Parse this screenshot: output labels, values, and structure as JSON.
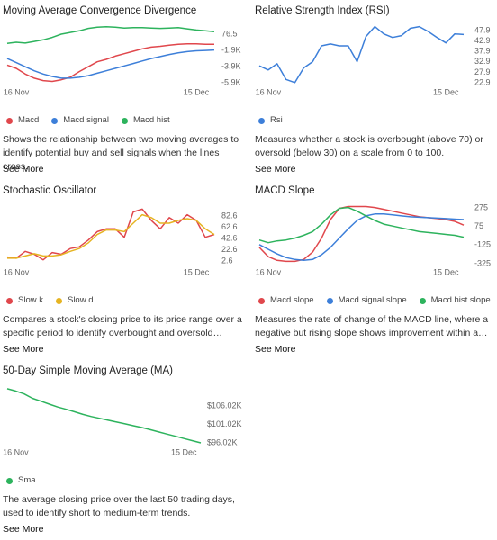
{
  "chart_data": [
    {
      "type": "line",
      "title": "Moving Average Convergence Divergence",
      "categories": [
        null,
        "16 Nov",
        null,
        null,
        null,
        null,
        null,
        null,
        null,
        null,
        null,
        null,
        null,
        null,
        null,
        null,
        null,
        null,
        null,
        null,
        null,
        "15 Dec",
        null,
        null
      ],
      "series": [
        {
          "name": "Macd",
          "color": "#e0474c",
          "values": [
            -3700,
            -4100,
            -4800,
            -5300,
            -5600,
            -5700,
            -5500,
            -5200,
            -4500,
            -3900,
            -3300,
            -3000,
            -2600,
            -2300,
            -2000,
            -1700,
            -1500,
            -1400,
            -1250,
            -1150,
            -1100,
            -1100,
            -1150,
            -1150
          ]
        },
        {
          "name": "Macd signal",
          "color": "#3d7fd9",
          "values": [
            -2900,
            -3400,
            -3900,
            -4400,
            -4800,
            -5100,
            -5300,
            -5300,
            -5200,
            -5000,
            -4700,
            -4400,
            -4100,
            -3800,
            -3500,
            -3200,
            -2900,
            -2650,
            -2400,
            -2200,
            -2050,
            -1950,
            -1900,
            -1850
          ]
        },
        {
          "name": "Macd hist",
          "color": "#2db35d",
          "values": [
            -1030,
            -900,
            -1000,
            -800,
            -600,
            -300,
            100,
            300,
            500,
            800,
            950,
            1000,
            950,
            850,
            900,
            900,
            850,
            800,
            850,
            900,
            750,
            600,
            500,
            400
          ]
        }
      ],
      "ylim": [
        -6200,
        1200
      ],
      "yticks": [
        76.5,
        {
          "value": -1900,
          "label": "-1.9K"
        },
        {
          "value": -3900,
          "label": "-3.9K"
        },
        {
          "value": -5900,
          "label": "-5.9K"
        }
      ],
      "description": "Shows the relationship between two moving averages to identify potential buy and sell signals when the lines cross.",
      "link": "See More"
    },
    {
      "type": "line",
      "title": "Relative Strength Index (RSI)",
      "categories": [
        null,
        "16 Nov",
        null,
        null,
        null,
        null,
        null,
        null,
        null,
        null,
        null,
        null,
        null,
        null,
        null,
        null,
        null,
        null,
        null,
        null,
        null,
        "15 Dec",
        null,
        null
      ],
      "series": [
        {
          "name": "Rsi",
          "color": "#3d7fd9",
          "values": [
            31,
            29,
            32,
            24.5,
            23,
            30,
            33,
            40.6,
            41.5,
            40.6,
            40.6,
            33,
            45,
            49.8,
            46.3,
            44.6,
            45.5,
            49,
            49.8,
            47.5,
            44.6,
            42,
            46.3,
            46
          ]
        }
      ],
      "ylim": [
        21.6,
        50.5
      ],
      "yticks": [
        47.9,
        42.9,
        37.9,
        32.9,
        27.9,
        22.9
      ],
      "description": "Measures whether a stock is overbought (above 70) or oversold (below 30) on a scale from 0 to 100.",
      "link": "See More"
    },
    {
      "type": "line",
      "title": "Stochastic Oscillator",
      "categories": [
        null,
        "16 Nov",
        null,
        null,
        null,
        null,
        null,
        null,
        null,
        null,
        null,
        null,
        null,
        null,
        null,
        null,
        null,
        null,
        null,
        null,
        null,
        "15 Dec",
        null,
        null
      ],
      "series": [
        {
          "name": "Slow k",
          "color": "#e0474c",
          "values": [
            10,
            8,
            20,
            15,
            5,
            18,
            15,
            25,
            28,
            40,
            55,
            60,
            60,
            45,
            90,
            95,
            75,
            60,
            80,
            70,
            85,
            75,
            45,
            50
          ]
        },
        {
          "name": "Slow d",
          "color": "#e6b422",
          "values": [
            8,
            8,
            12,
            16,
            12,
            12,
            14,
            20,
            25,
            35,
            50,
            58,
            58,
            55,
            70,
            85,
            80,
            70,
            70,
            75,
            78,
            75,
            60,
            50
          ]
        }
      ],
      "ylim": [
        -5,
        102
      ],
      "yticks": [
        82.6,
        62.6,
        42.6,
        22.6,
        2.6
      ],
      "description": "Compares a stock's closing price to its price range over a specific period to identify overbought and oversold…",
      "link": "See More"
    },
    {
      "type": "line",
      "title": "MACD Slope",
      "categories": [
        null,
        "16 Nov",
        null,
        null,
        null,
        null,
        null,
        null,
        null,
        null,
        null,
        null,
        null,
        null,
        null,
        null,
        null,
        null,
        null,
        null,
        null,
        "15 Dec",
        null,
        null
      ],
      "series": [
        {
          "name": "Macd slope",
          "color": "#e0474c",
          "values": [
            -150,
            -250,
            -290,
            -300,
            -300,
            -280,
            -200,
            -50,
            150,
            270,
            290,
            290,
            290,
            280,
            260,
            240,
            220,
            200,
            180,
            170,
            160,
            150,
            130,
            90
          ]
        },
        {
          "name": "Macd signal slope",
          "color": "#3d7fd9",
          "values": [
            -120,
            -170,
            -220,
            -260,
            -280,
            -290,
            -280,
            -230,
            -150,
            -50,
            50,
            140,
            190,
            210,
            210,
            200,
            190,
            180,
            175,
            170,
            165,
            160,
            155,
            150
          ]
        },
        {
          "name": "Macd hist slope",
          "color": "#2db35d",
          "values": [
            -70,
            -100,
            -80,
            -70,
            -50,
            -20,
            20,
            100,
            200,
            270,
            280,
            240,
            190,
            140,
            100,
            80,
            60,
            40,
            20,
            10,
            0,
            -10,
            -20,
            -40
          ]
        }
      ],
      "ylim": [
        -345,
        305
      ],
      "yticks": [
        275,
        75,
        -125,
        -325
      ],
      "description": "Measures the rate of change of the MACD line, where a negative but rising slope shows improvement within a…",
      "link": "See More"
    },
    {
      "type": "line",
      "title": "50-Day Simple Moving Average (MA)",
      "categories": [
        null,
        "16 Nov",
        null,
        null,
        null,
        null,
        null,
        null,
        null,
        null,
        null,
        null,
        null,
        null,
        null,
        null,
        null,
        null,
        null,
        null,
        null,
        "15 Dec",
        null,
        null
      ],
      "series": [
        {
          "name": "Sma",
          "color": "#2db35d",
          "values": [
            110800,
            110200,
            109400,
            108200,
            107400,
            106600,
            105800,
            105200,
            104500,
            103800,
            103200,
            102700,
            102200,
            101700,
            101200,
            100700,
            100200,
            99600,
            99000,
            98400,
            97800,
            97200,
            96600,
            96000
          ]
        }
      ],
      "ylim": [
        95270,
        111770
      ],
      "yticks": [
        {
          "value": 106020,
          "label": "$106.02K"
        },
        {
          "value": 101020,
          "label": "$101.02K"
        },
        {
          "value": 96020,
          "label": "$96.02K"
        }
      ],
      "description": "The average closing price over the last 50 trading days, used to identify short to medium-term trends.",
      "link": "See More"
    }
  ]
}
